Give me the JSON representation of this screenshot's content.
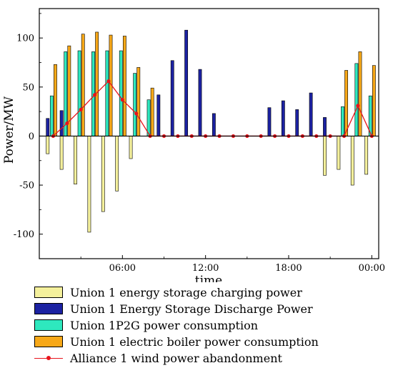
{
  "chart_data": {
    "type": "bar",
    "title": "",
    "xlabel": "time",
    "ylabel": "Power/MW",
    "ylim": [
      -125,
      130
    ],
    "xlim": [
      0,
      24.5
    ],
    "grid": false,
    "legend_position": "bottom",
    "y_ticks": [
      -100,
      -50,
      0,
      50,
      100
    ],
    "x_ticks": [
      {
        "value": 6,
        "label": "06:00"
      },
      {
        "value": 12,
        "label": "12:00"
      },
      {
        "value": 18,
        "label": "18:00"
      },
      {
        "value": 24,
        "label": "00:00"
      }
    ],
    "hours": [
      1,
      2,
      3,
      4,
      5,
      6,
      7,
      8,
      9,
      10,
      11,
      12,
      13,
      14,
      15,
      16,
      17,
      18,
      19,
      20,
      21,
      22,
      23,
      24
    ],
    "series": [
      {
        "name": "Union 1 energy storage charging power",
        "kind": "bar",
        "color": "#f4f09c",
        "values": [
          -18,
          -34,
          -49,
          -98,
          -77,
          -56,
          -23,
          0,
          0,
          0,
          0,
          0,
          0,
          0,
          0,
          0,
          0,
          0,
          0,
          0,
          -40,
          -34,
          -50,
          -39
        ]
      },
      {
        "name": "Union 1 Energy Storage Discharge Power",
        "kind": "bar",
        "color": "#1c22a2",
        "values": [
          18,
          26,
          0,
          0,
          0,
          0,
          0,
          0,
          42,
          77,
          108,
          68,
          23,
          0,
          0,
          0,
          29,
          36,
          27,
          44,
          19,
          0,
          0,
          0
        ]
      },
      {
        "name": "Union 1P2G power consumption",
        "kind": "bar",
        "color": "#2ee8be",
        "values": [
          41,
          86,
          87,
          86,
          87,
          87,
          64,
          37,
          0,
          0,
          0,
          0,
          0,
          0,
          0,
          0,
          0,
          0,
          0,
          0,
          0,
          30,
          74,
          41
        ]
      },
      {
        "name": "Union 1 electric boiler power consumption",
        "kind": "bar",
        "color": "#f7a818",
        "values": [
          73,
          92,
          104,
          106,
          103,
          102,
          70,
          49,
          0,
          0,
          0,
          0,
          0,
          0,
          0,
          0,
          0,
          0,
          0,
          0,
          0,
          67,
          86,
          72
        ]
      },
      {
        "name": "Alliance 1 wind power abandonment",
        "kind": "line",
        "color": "#e8141c",
        "values": [
          0,
          13,
          27,
          42,
          56,
          37,
          23,
          0,
          0,
          0,
          0,
          0,
          0,
          0,
          0,
          0,
          0,
          0,
          0,
          0,
          0,
          0,
          31,
          0
        ]
      }
    ]
  }
}
